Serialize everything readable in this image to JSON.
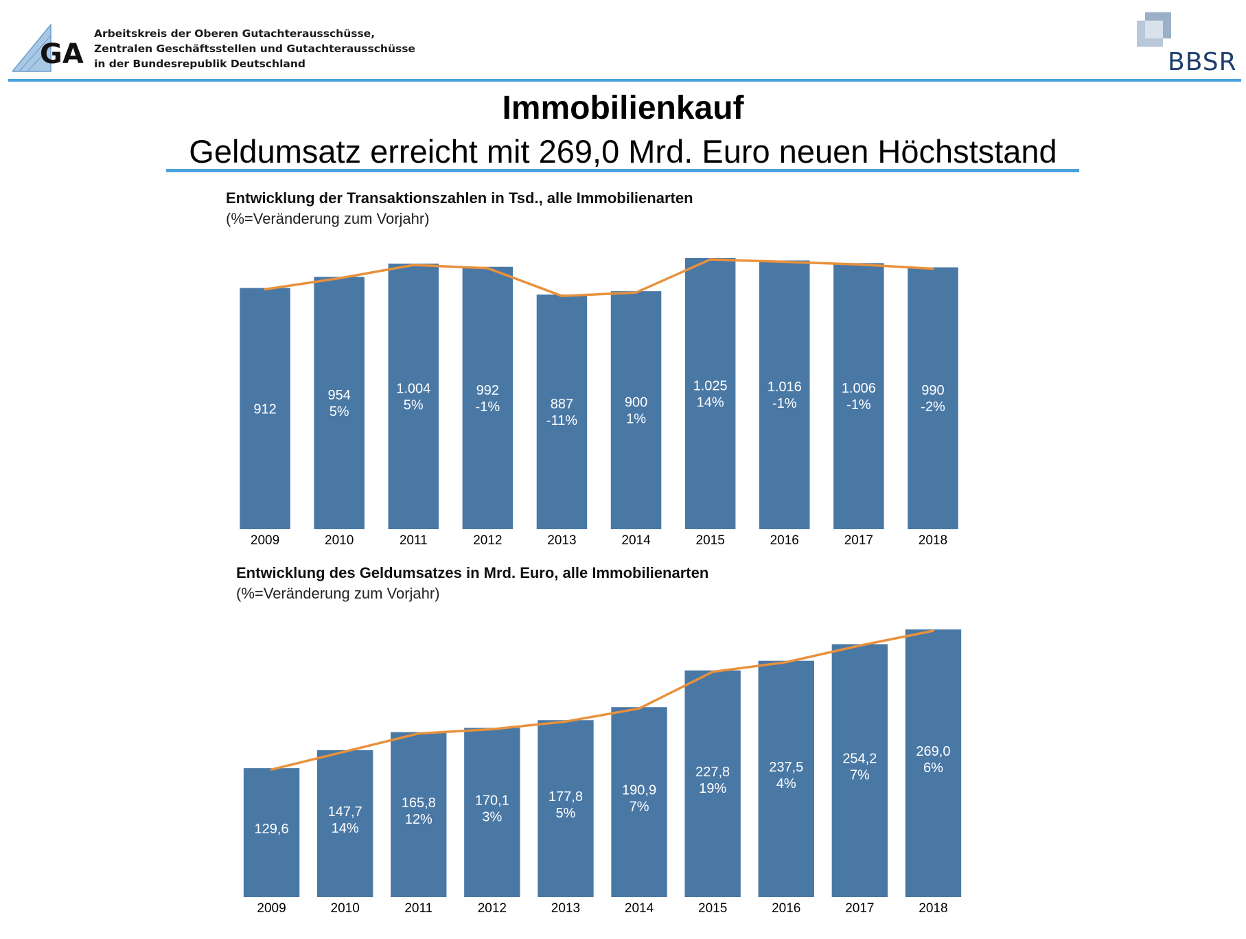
{
  "header": {
    "org_lines": [
      "Arbeitskreis der Oberen Gutachterausschüsse,",
      "Zentralen Geschäftsstellen und Gutachterausschüsse",
      "in der Bundesrepublik Deutschland"
    ],
    "left_logo_text": "GA",
    "right_logo_text": "BBSR"
  },
  "page": {
    "title": "Immobilienkauf",
    "subtitle": "Geldumsatz erreicht mit 269,0 Mrd. Euro neuen Höchststand"
  },
  "colors": {
    "bar": "#4a78a5",
    "trend_line": "#e8913c",
    "accent_rule": "#4aa3dc"
  },
  "chart_data": [
    {
      "type": "bar",
      "title": "Entwicklung der Transaktionszahlen in Tsd., alle Immobilienarten",
      "subtitle": "(%=Veränderung zum Vorjahr)",
      "categories": [
        "2009",
        "2010",
        "2011",
        "2012",
        "2013",
        "2014",
        "2015",
        "2016",
        "2017",
        "2018"
      ],
      "values": [
        912,
        954,
        1004,
        992,
        887,
        900,
        1025,
        1016,
        1006,
        990
      ],
      "value_labels": [
        "912",
        "954",
        "1.004",
        "992",
        "887",
        "900",
        "1.025",
        "1.016",
        "1.006",
        "990"
      ],
      "change_labels": [
        "",
        "5%",
        "5%",
        "-1%",
        "-11%",
        "1%",
        "14%",
        "-1%",
        "-1%",
        "-2%"
      ],
      "trend_line": true,
      "xlabel": "",
      "ylabel": "",
      "grid": false
    },
    {
      "type": "bar",
      "title": "Entwicklung des Geldumsatzes in Mrd. Euro, alle Immobilienarten",
      "subtitle": "(%=Veränderung zum Vorjahr)",
      "categories": [
        "2009",
        "2010",
        "2011",
        "2012",
        "2013",
        "2014",
        "2015",
        "2016",
        "2017",
        "2018"
      ],
      "values": [
        129.6,
        147.7,
        165.8,
        170.1,
        177.8,
        190.9,
        227.8,
        237.5,
        254.2,
        269.0
      ],
      "value_labels": [
        "129,6",
        "147,7",
        "165,8",
        "170,1",
        "177,8",
        "190,9",
        "227,8",
        "237,5",
        "254,2",
        "269,0"
      ],
      "change_labels": [
        "",
        "14%",
        "12%",
        "3%",
        "5%",
        "7%",
        "19%",
        "4%",
        "7%",
        "6%"
      ],
      "trend_line": true,
      "xlabel": "",
      "ylabel": "",
      "grid": false
    }
  ]
}
